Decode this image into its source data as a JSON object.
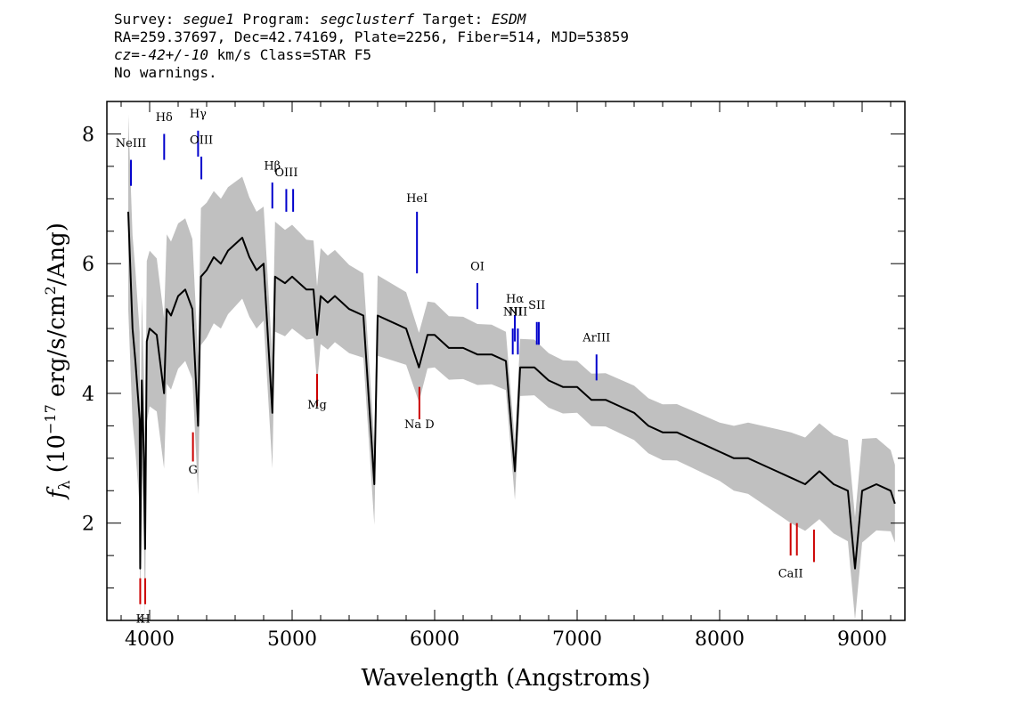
{
  "header": {
    "line1": {
      "survey_label": "Survey: ",
      "survey": "segue1",
      "program_label": " Program: ",
      "program": "segclusterf",
      "target_label": " Target: ",
      "target": "ESDM"
    },
    "line2": "RA=259.37697, Dec=42.74169, Plate=2256, Fiber=514, MJD=53859",
    "line3": {
      "cz": "cz=-42+/-10",
      "rest": " km/s Class=STAR F5"
    },
    "line4": "No warnings."
  },
  "chart_data": {
    "type": "line",
    "xlabel": "Wavelength (Angstroms)",
    "ylabel": "f_λ (10^-17 erg/s/cm^2/Ang)",
    "xlim": [
      3700,
      9300
    ],
    "ylim": [
      0.5,
      8.5
    ],
    "x_ticks": [
      4000,
      5000,
      6000,
      7000,
      8000,
      9000
    ],
    "y_ticks": [
      2,
      4,
      6,
      8
    ],
    "grid": false,
    "series": [
      {
        "role": "flux",
        "color": "#000000",
        "points": [
          [
            3850,
            6.8
          ],
          [
            3880,
            5.0
          ],
          [
            3900,
            4.5
          ],
          [
            3930,
            3.6
          ],
          [
            3934,
            1.3
          ],
          [
            3945,
            4.2
          ],
          [
            3960,
            3.0
          ],
          [
            3968,
            1.6
          ],
          [
            3980,
            4.8
          ],
          [
            4000,
            5.0
          ],
          [
            4050,
            4.9
          ],
          [
            4101,
            4.0
          ],
          [
            4120,
            5.3
          ],
          [
            4150,
            5.2
          ],
          [
            4200,
            5.5
          ],
          [
            4250,
            5.6
          ],
          [
            4300,
            5.3
          ],
          [
            4340,
            3.5
          ],
          [
            4360,
            5.8
          ],
          [
            4400,
            5.9
          ],
          [
            4450,
            6.1
          ],
          [
            4500,
            6.0
          ],
          [
            4550,
            6.2
          ],
          [
            4600,
            6.3
          ],
          [
            4650,
            6.4
          ],
          [
            4700,
            6.1
          ],
          [
            4750,
            5.9
          ],
          [
            4800,
            6.0
          ],
          [
            4861,
            3.7
          ],
          [
            4880,
            5.8
          ],
          [
            4950,
            5.7
          ],
          [
            5000,
            5.8
          ],
          [
            5050,
            5.7
          ],
          [
            5100,
            5.6
          ],
          [
            5150,
            5.6
          ],
          [
            5175,
            4.9
          ],
          [
            5200,
            5.5
          ],
          [
            5250,
            5.4
          ],
          [
            5300,
            5.5
          ],
          [
            5400,
            5.3
          ],
          [
            5500,
            5.2
          ],
          [
            5577,
            2.6
          ],
          [
            5600,
            5.2
          ],
          [
            5700,
            5.1
          ],
          [
            5800,
            5.0
          ],
          [
            5890,
            4.4
          ],
          [
            5950,
            4.9
          ],
          [
            6000,
            4.9
          ],
          [
            6100,
            4.7
          ],
          [
            6200,
            4.7
          ],
          [
            6300,
            4.6
          ],
          [
            6400,
            4.6
          ],
          [
            6500,
            4.5
          ],
          [
            6563,
            2.8
          ],
          [
            6600,
            4.4
          ],
          [
            6700,
            4.4
          ],
          [
            6800,
            4.2
          ],
          [
            6900,
            4.1
          ],
          [
            7000,
            4.1
          ],
          [
            7100,
            3.9
          ],
          [
            7200,
            3.9
          ],
          [
            7300,
            3.8
          ],
          [
            7400,
            3.7
          ],
          [
            7500,
            3.5
          ],
          [
            7600,
            3.4
          ],
          [
            7700,
            3.4
          ],
          [
            7800,
            3.3
          ],
          [
            7900,
            3.2
          ],
          [
            8000,
            3.1
          ],
          [
            8100,
            3.0
          ],
          [
            8200,
            3.0
          ],
          [
            8300,
            2.9
          ],
          [
            8400,
            2.8
          ],
          [
            8500,
            2.7
          ],
          [
            8600,
            2.6
          ],
          [
            8700,
            2.8
          ],
          [
            8800,
            2.6
          ],
          [
            8900,
            2.5
          ],
          [
            8950,
            1.3
          ],
          [
            9000,
            2.5
          ],
          [
            9100,
            2.6
          ],
          [
            9200,
            2.5
          ],
          [
            9230,
            2.3
          ]
        ]
      },
      {
        "role": "flux_uncertainty_band",
        "color": "#c0c0c0",
        "halfwidth": [
          [
            3850,
            1.5
          ],
          [
            4000,
            1.2
          ],
          [
            4500,
            1.0
          ],
          [
            5000,
            0.8
          ],
          [
            6000,
            0.5
          ],
          [
            7000,
            0.4
          ],
          [
            8000,
            0.45
          ],
          [
            8500,
            0.7
          ],
          [
            9000,
            0.8
          ],
          [
            9230,
            0.6
          ]
        ]
      }
    ],
    "emission_markers": [
      {
        "label": "NeIII",
        "x": 3869,
        "y": [
          7.2,
          7.6
        ],
        "label_y": 7.8,
        "color": "#0000cc"
      },
      {
        "label": "Hδ",
        "x": 4102,
        "y": [
          7.6,
          8.0
        ],
        "label_y": 8.2,
        "color": "#0000cc"
      },
      {
        "label": "Hγ",
        "x": 4340,
        "y": [
          7.65,
          8.05
        ],
        "label_y": 8.25,
        "color": "#0000cc"
      },
      {
        "label": "OIII",
        "x": 4363,
        "y": [
          7.3,
          7.65
        ],
        "label_y": 7.85,
        "color": "#0000cc"
      },
      {
        "label": "Hβ",
        "x": 4861,
        "y": [
          6.85,
          7.25
        ],
        "label_y": 7.45,
        "color": "#0000cc"
      },
      {
        "label": "OIII",
        "x": 4959,
        "y": [
          6.8,
          7.15
        ],
        "label_y": 7.35,
        "color": "#0000cc"
      },
      {
        "label": "",
        "x": 5007,
        "y": [
          6.8,
          7.15
        ],
        "label_y": 7.35,
        "color": "#0000cc"
      },
      {
        "label": "HeI",
        "x": 5876,
        "y": [
          5.85,
          6.8
        ],
        "label_y": 6.95,
        "color": "#0000cc"
      },
      {
        "label": "OI",
        "x": 6300,
        "y": [
          5.3,
          5.7
        ],
        "label_y": 5.9,
        "color": "#0000cc"
      },
      {
        "label": "NII",
        "x": 6548,
        "y": [
          4.6,
          5.0
        ],
        "label_y": 5.2,
        "color": "#0000cc"
      },
      {
        "label": "Hα",
        "x": 6563,
        "y": [
          4.8,
          5.2
        ],
        "label_y": 5.4,
        "color": "#0000cc"
      },
      {
        "label": "NII",
        "x": 6584,
        "y": [
          4.6,
          5.0
        ],
        "label_y": 5.2,
        "color": "#0000cc"
      },
      {
        "label": "SII",
        "x": 6717,
        "y": [
          4.75,
          5.1
        ],
        "label_y": 5.3,
        "color": "#0000cc"
      },
      {
        "label": "",
        "x": 6731,
        "y": [
          4.75,
          5.1
        ],
        "label_y": 5.3,
        "color": "#0000cc"
      },
      {
        "label": "ArIII",
        "x": 7136,
        "y": [
          4.2,
          4.6
        ],
        "label_y": 4.8,
        "color": "#0000cc"
      }
    ],
    "absorption_markers": [
      {
        "label": "K",
        "x": 3934,
        "y": [
          0.75,
          1.15
        ],
        "label_y": 0.6,
        "color": "#cc0000"
      },
      {
        "label": "H",
        "x": 3969,
        "y": [
          0.75,
          1.15
        ],
        "label_y": 0.6,
        "color": "#cc0000"
      },
      {
        "label": "G",
        "x": 4304,
        "y": [
          2.95,
          3.4
        ],
        "label_y": 2.9,
        "color": "#cc0000"
      },
      {
        "label": "Mg",
        "x": 5175,
        "y": [
          3.8,
          4.3
        ],
        "label_y": 3.9,
        "color": "#cc0000"
      },
      {
        "label": "Na D",
        "x": 5893,
        "y": [
          3.6,
          4.1
        ],
        "label_y": 3.6,
        "color": "#cc0000"
      },
      {
        "label": "CaII",
        "x": 8498,
        "y": [
          1.5,
          2.0
        ],
        "label_y": 1.3,
        "color": "#cc0000"
      },
      {
        "label": "",
        "x": 8542,
        "y": [
          1.5,
          2.0
        ],
        "label_y": 1.3,
        "color": "#cc0000"
      },
      {
        "label": "",
        "x": 8662,
        "y": [
          1.4,
          1.9
        ],
        "label_y": 1.3,
        "color": "#cc0000"
      }
    ]
  }
}
